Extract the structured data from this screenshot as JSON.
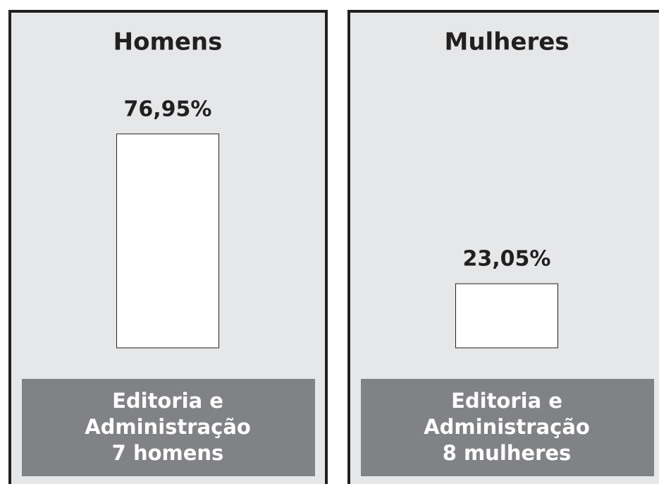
{
  "chart_data": [
    {
      "type": "bar",
      "title": "Homens",
      "values": [
        76.95
      ],
      "value_labels": [
        "76,95%"
      ],
      "color": "#ffffff",
      "caption": [
        "Editoria e",
        "Administração",
        "7 homens"
      ]
    },
    {
      "type": "bar",
      "title": "Mulheres",
      "values": [
        23.05
      ],
      "value_labels": [
        "23,05%"
      ],
      "color": "#ffffff",
      "caption": [
        "Editoria e",
        "Administração",
        "8 mulheres"
      ]
    }
  ]
}
